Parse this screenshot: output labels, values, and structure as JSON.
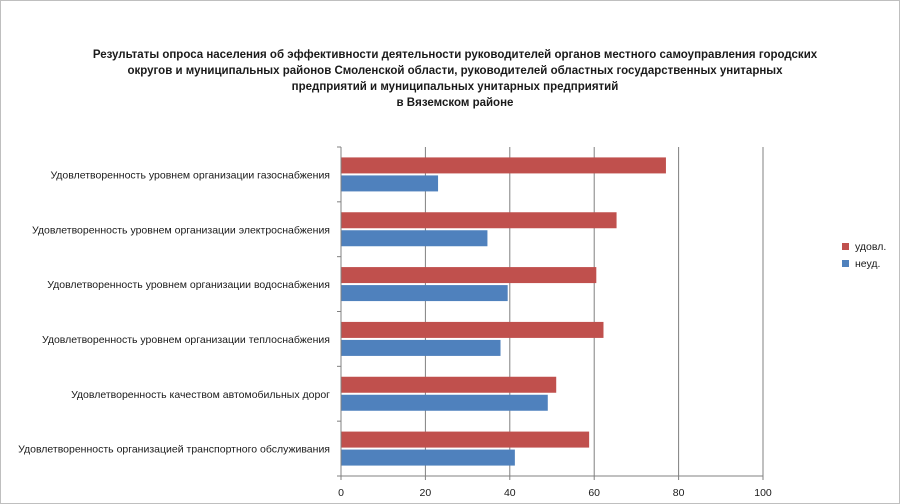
{
  "chart_data": {
    "type": "bar",
    "orientation": "horizontal",
    "title_lines": [
      "Результаты опроса населения об эффективности деятельности руководителей органов местного самоуправления городских",
      "округов и муниципальных районов Смоленской области, руководителей областных государственных унитарных",
      "предприятий и муниципальных унитарных предприятий",
      "в Вяземском районе"
    ],
    "categories": [
      "Удовлетворенность уровнем организации газоснабжения",
      "Удовлетворенность уровнем организации электроснабжения",
      "Удовлетворенность уровнем организации водоснабжения",
      "Удовлетворенность уровнем организации теплоснабжения",
      "Удовлетворенность качеством автомобильных дорог",
      "Удовлетворенность организацией транспортного обслуживания"
    ],
    "series": [
      {
        "name": "удовл.",
        "color": "#c0504d",
        "values": [
          77,
          65.3,
          60.5,
          62.2,
          51,
          58.8
        ]
      },
      {
        "name": "неуд.",
        "color": "#4f81bd",
        "values": [
          23,
          34.7,
          39.5,
          37.8,
          49,
          41.2
        ]
      }
    ],
    "xlim": [
      0,
      100
    ],
    "x_ticks": [
      0,
      20,
      40,
      60,
      80,
      100
    ],
    "grid": true,
    "legend_position": "right"
  }
}
